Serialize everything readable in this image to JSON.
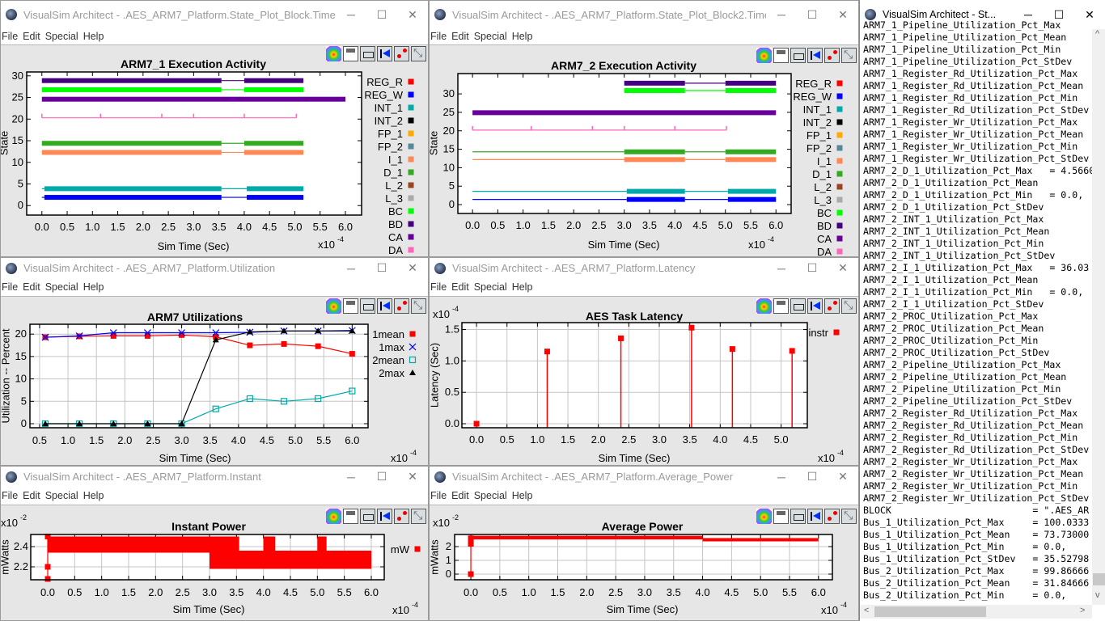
{
  "menu": [
    "File",
    "Edit",
    "Special",
    "Help"
  ],
  "window_controls": {
    "minimize": "─",
    "maximize": "☐",
    "close": "✕"
  },
  "windows": [
    {
      "title": "VisualSim Architect - .AES_ARM7_Platform.State_Plot_Block.Timed..."
    },
    {
      "title": "VisualSim Architect - .AES_ARM7_Platform.State_Plot_Block2.Time..."
    },
    {
      "title": "VisualSim Architect - .AES_ARM7_Platform.Utilization"
    },
    {
      "title": "VisualSim Architect - .AES_ARM7_Platform.Latency"
    },
    {
      "title": "VisualSim Architect - .AES_ARM7_Platform.Instant"
    },
    {
      "title": "VisualSim Architect - .AES_ARM7_Platform.Average_Power"
    }
  ],
  "toolbar_icons": [
    "color-palette",
    "save",
    "print",
    "reset-axes",
    "points",
    "fill"
  ],
  "chart_data": [
    {
      "type": "state",
      "title": "ARM7_1 Execution Activity",
      "xlabel": "Sim Time (Sec)",
      "ylabel": "State",
      "x_multiplier": {
        "base": "x10",
        "exp": "-4"
      },
      "xlim": [
        -0.3,
        6.32
      ],
      "ylim": [
        -2.2,
        30.9
      ],
      "grid": false,
      "xticks": [
        "0.0",
        "0.5",
        "1.0",
        "1.5",
        "2.0",
        "2.5",
        "3.0",
        "3.5",
        "4.0",
        "4.5",
        "5.0",
        "5.5",
        "6.0"
      ],
      "yticks": [
        "0",
        "5",
        "10",
        "15",
        "20",
        "25",
        "30"
      ],
      "legend": [
        {
          "name": "REG_R",
          "color": "#ff0000"
        },
        {
          "name": "REG_W",
          "color": "#0000ff"
        },
        {
          "name": "INT_1",
          "color": "#00aaaa"
        },
        {
          "name": "INT_2",
          "color": "#000000"
        },
        {
          "name": "FP_1",
          "color": "#ffaa00"
        },
        {
          "name": "FP_2",
          "color": "#558899"
        },
        {
          "name": "I_1",
          "color": "#ff8855"
        },
        {
          "name": "D_1",
          "color": "#33aa22"
        },
        {
          "name": "L_2",
          "color": "#994422"
        },
        {
          "name": "L_3",
          "color": "#aaaaaa"
        },
        {
          "name": "BC",
          "color": "#00ff00"
        },
        {
          "name": "BD",
          "color": "#44007f"
        },
        {
          "name": "CA",
          "color": "#660099"
        },
        {
          "name": "DA",
          "color": "#ff66bb"
        }
      ],
      "series": [
        {
          "name": "BD",
          "color": "#44007f",
          "level": 28.9,
          "segments": [
            [
              0,
              3.55,
              1
            ],
            [
              3.55,
              4.0,
              0
            ],
            [
              4.0,
              5.17,
              1
            ]
          ]
        },
        {
          "name": "BC",
          "color": "#00ff00",
          "level": 26.8,
          "segments": [
            [
              0,
              3.55,
              1
            ],
            [
              3.55,
              4.0,
              0
            ],
            [
              4.0,
              5.17,
              1
            ]
          ]
        },
        {
          "name": "CA",
          "color": "#660099",
          "level": 24.6,
          "segments": [
            [
              0,
              6.0,
              1
            ]
          ]
        },
        {
          "name": "DA",
          "color": "#ff66bb",
          "level": 20.3,
          "segments": [
            [
              0,
              5.03,
              0
            ]
          ],
          "ticks": [
            0,
            1.16,
            2.37,
            3.0,
            4.0,
            5.03
          ]
        },
        {
          "name": "D_1",
          "color": "#33aa22",
          "level": 14.4,
          "segments": [
            [
              0,
              3.55,
              1
            ],
            [
              3.55,
              4.0,
              0
            ],
            [
              4.0,
              5.17,
              1
            ]
          ]
        },
        {
          "name": "I_1",
          "color": "#ff8855",
          "level": 12.3,
          "segments": [
            [
              0,
              3.55,
              1
            ],
            [
              3.55,
              4.0,
              0
            ],
            [
              4.0,
              5.17,
              1
            ]
          ]
        },
        {
          "name": "INT_1",
          "color": "#00aaaa",
          "level": 3.9,
          "segments": [
            [
              0,
              0.05,
              0
            ],
            [
              0.05,
              3.55,
              1
            ],
            [
              3.55,
              4.05,
              0
            ],
            [
              4.05,
              5.17,
              1
            ]
          ]
        },
        {
          "name": "REG_W",
          "color": "#0000ff",
          "level": 1.9,
          "segments": [
            [
              0,
              0.05,
              0
            ],
            [
              0.05,
              3.55,
              1
            ],
            [
              3.55,
              4.05,
              0
            ],
            [
              4.05,
              5.17,
              1
            ]
          ]
        }
      ]
    },
    {
      "type": "state",
      "title": "ARM7_2 Execution Activity",
      "xlabel": "Sim Time (Sec)",
      "ylabel": "State",
      "x_multiplier": {
        "base": "x10",
        "exp": "-4"
      },
      "xlim": [
        -0.29,
        6.3
      ],
      "ylim": [
        -2.4,
        35.5
      ],
      "grid": false,
      "xticks": [
        "0.0",
        "0.5",
        "1.0",
        "1.5",
        "2.0",
        "2.5",
        "3.0",
        "3.5",
        "4.0",
        "4.5",
        "5.0",
        "5.5",
        "6.0"
      ],
      "yticks": [
        "0",
        "5",
        "10",
        "15",
        "20",
        "25",
        "30"
      ],
      "legend": [
        {
          "name": "REG_R",
          "color": "#ff0000"
        },
        {
          "name": "REG_W",
          "color": "#0000ff"
        },
        {
          "name": "INT_1",
          "color": "#00aaaa"
        },
        {
          "name": "INT_2",
          "color": "#000000"
        },
        {
          "name": "FP_1",
          "color": "#ffaa00"
        },
        {
          "name": "FP_2",
          "color": "#558899"
        },
        {
          "name": "I_1",
          "color": "#ff8855"
        },
        {
          "name": "D_1",
          "color": "#33aa22"
        },
        {
          "name": "L_2",
          "color": "#994422"
        },
        {
          "name": "L_3",
          "color": "#aaaaaa"
        },
        {
          "name": "BC",
          "color": "#00ff00"
        },
        {
          "name": "BD",
          "color": "#44007f"
        },
        {
          "name": "CA",
          "color": "#660099"
        },
        {
          "name": "DA",
          "color": "#ff66bb"
        }
      ],
      "series": [
        {
          "name": "BD",
          "color": "#44007f",
          "level": 32.9,
          "segments": [
            [
              3.0,
              4.2,
              1
            ],
            [
              4.2,
              5.0,
              0
            ],
            [
              5.0,
              6.0,
              1
            ]
          ]
        },
        {
          "name": "BC",
          "color": "#00ff00",
          "level": 30.9,
          "segments": [
            [
              3.0,
              4.2,
              1
            ],
            [
              4.2,
              5.0,
              0
            ],
            [
              5.0,
              6.0,
              1
            ]
          ]
        },
        {
          "name": "CA",
          "color": "#660099",
          "level": 24.9,
          "segments": [
            [
              0,
              6.0,
              1
            ]
          ]
        },
        {
          "name": "DA",
          "color": "#ff66bb",
          "level": 20.2,
          "segments": [
            [
              0,
              5.02,
              0
            ]
          ],
          "ticks": [
            0,
            1.16,
            2.37,
            3.0,
            4.0,
            5.02
          ]
        },
        {
          "name": "D_1",
          "color": "#33aa22",
          "level": 14.3,
          "segments": [
            [
              0,
              3.0,
              0
            ],
            [
              3.0,
              4.2,
              1
            ],
            [
              4.2,
              5.0,
              0
            ],
            [
              5.0,
              6.0,
              1
            ]
          ]
        },
        {
          "name": "I_1",
          "color": "#ff8855",
          "level": 12.2,
          "segments": [
            [
              0,
              3.0,
              0
            ],
            [
              3.0,
              4.2,
              1
            ],
            [
              4.2,
              5.0,
              0
            ],
            [
              5.0,
              6.0,
              1
            ]
          ]
        },
        {
          "name": "INT_1",
          "color": "#00aaaa",
          "level": 3.6,
          "segments": [
            [
              0,
              3.05,
              0
            ],
            [
              3.05,
              4.2,
              1
            ],
            [
              4.2,
              5.05,
              0
            ],
            [
              5.05,
              6.0,
              1
            ]
          ]
        },
        {
          "name": "REG_W",
          "color": "#0000ff",
          "level": 1.4,
          "segments": [
            [
              0,
              3.05,
              0
            ],
            [
              3.05,
              4.2,
              1
            ],
            [
              4.2,
              5.05,
              0
            ],
            [
              5.05,
              6.0,
              1
            ]
          ]
        }
      ]
    },
    {
      "type": "line",
      "title": "ARM7 Utilizations",
      "xlabel": "Sim Time (Sec)",
      "ylabel": "Utilization -- Percent",
      "x_multiplier": {
        "base": "x10",
        "exp": "-4"
      },
      "xlim": [
        0.33,
        6.28
      ],
      "ylim": [
        -0.9,
        22.2
      ],
      "grid": true,
      "xticks": [
        "0.5",
        "1.0",
        "1.5",
        "2.0",
        "2.5",
        "3.0",
        "3.5",
        "4.0",
        "4.5",
        "5.0",
        "5.5",
        "6.0"
      ],
      "yticks": [
        "0",
        "5",
        "10",
        "15",
        "20"
      ],
      "x": [
        0.6,
        1.2,
        1.8,
        2.4,
        3.0,
        3.6,
        4.2,
        4.8,
        5.4,
        6.0
      ],
      "series": [
        {
          "name": "1mean",
          "color": "#ff0000",
          "marker": "square",
          "values": [
            19.3,
            19.5,
            19.6,
            19.6,
            19.8,
            19.4,
            17.5,
            17.8,
            17.3,
            15.6
          ]
        },
        {
          "name": "1max",
          "color": "#0000ff",
          "marker": "x",
          "values": [
            19.3,
            19.6,
            20.3,
            20.3,
            20.3,
            20.3,
            20.4,
            20.7,
            20.7,
            20.8
          ]
        },
        {
          "name": "2mean",
          "color": "#00aaaa",
          "marker": "hollow-square",
          "values": [
            0,
            0,
            0,
            0,
            0,
            3.3,
            5.6,
            5.0,
            5.6,
            7.3
          ]
        },
        {
          "name": "2max",
          "color": "#000000",
          "marker": "triangle",
          "values": [
            0,
            0,
            0,
            0,
            0,
            18.7,
            20.5,
            20.7,
            20.7,
            20.7
          ]
        }
      ]
    },
    {
      "type": "stem",
      "title": "AES Task Latency",
      "xlabel": "Sim Time (Sec)",
      "ylabel": "Latency (Sec)",
      "x_multiplier": {
        "base": "x10",
        "exp": "-4"
      },
      "y_multiplier": {
        "base": "x10",
        "exp": "-4"
      },
      "xlim": [
        -0.24,
        5.43
      ],
      "ylim": [
        -0.064,
        1.61
      ],
      "grid": true,
      "xticks": [
        "0.0",
        "0.5",
        "1.0",
        "1.5",
        "2.0",
        "2.5",
        "3.0",
        "3.5",
        "4.0",
        "4.5",
        "5.0"
      ],
      "yticks": [
        "0.0",
        "0.5",
        "1.0",
        "1.5"
      ],
      "series": [
        {
          "name": "instr",
          "color": "#ff0000",
          "marker": "square",
          "points": [
            [
              0.0,
              0.0
            ],
            [
              1.16,
              1.15
            ],
            [
              2.37,
              1.36
            ],
            [
              3.53,
              1.53
            ],
            [
              4.2,
              1.19
            ],
            [
              5.18,
              1.16
            ]
          ]
        }
      ]
    },
    {
      "type": "area",
      "title": "Instant Power",
      "xlabel": "Sim Time (Sec)",
      "ylabel": "mWatts",
      "x_multiplier": {
        "base": "x10",
        "exp": "-4"
      },
      "y_multiplier": {
        "base": "x10",
        "exp": "-2"
      },
      "xlim": [
        -0.315,
        6.24
      ],
      "ylim": [
        2.072,
        2.52
      ],
      "grid": true,
      "xticks": [
        "0.0",
        "0.5",
        "1.0",
        "1.5",
        "2.0",
        "2.5",
        "3.0",
        "3.5",
        "4.0",
        "4.5",
        "5.0",
        "5.5",
        "6.0"
      ],
      "yticks": [
        "2.2",
        "2.4"
      ],
      "series": [
        {
          "name": "mW",
          "color": "#ff0000",
          "bands": [
            [
              0.0,
              3.55,
              2.34,
              2.5
            ],
            [
              3.0,
              6.0,
              2.18,
              2.36
            ],
            [
              4.0,
              4.22,
              2.34,
              2.5
            ],
            [
              5.0,
              5.17,
              2.34,
              2.5
            ]
          ],
          "points": [
            [
              0.0,
              2.5
            ],
            [
              0.0,
              2.2
            ],
            [
              0.0,
              2.08
            ]
          ]
        }
      ]
    },
    {
      "type": "area",
      "title": "Average Power",
      "xlabel": "Sim Time (Sec)",
      "ylabel": "mWatts",
      "x_multiplier": {
        "base": "x10",
        "exp": "-4"
      },
      "y_multiplier": {
        "base": "x10",
        "exp": "-2"
      },
      "xlim": [
        -0.28,
        6.24
      ],
      "ylim": [
        -0.41,
        2.88
      ],
      "grid": true,
      "xticks": [
        "0.0",
        "0.5",
        "1.0",
        "1.5",
        "2.0",
        "2.5",
        "3.0",
        "3.5",
        "4.0",
        "4.5",
        "5.0",
        "5.5",
        "6.0"
      ],
      "yticks": [
        "0",
        "1",
        "2"
      ],
      "series": [
        {
          "color": "#ff0000",
          "bands": [
            [
              0.03,
              4.0,
              2.52,
              2.78
            ],
            [
              4.0,
              6.0,
              2.38,
              2.62
            ]
          ],
          "points": [
            [
              0.0,
              0.0
            ],
            [
              0.0,
              2.2
            ],
            [
              0.0,
              2.6
            ]
          ]
        }
      ]
    }
  ],
  "text_window": {
    "title": "VisualSim Architect - St...",
    "lines": [
      "ARM7_1_Pipeline_Utilization_Pct_Max",
      "ARM7_1_Pipeline_Utilization_Pct_Mean",
      "ARM7_1_Pipeline_Utilization_Pct_Min",
      "ARM7_1_Pipeline_Utilization_Pct_StDev",
      "ARM7_1_Register_Rd_Utilization_Pct_Max",
      "ARM7_1_Register_Rd_Utilization_Pct_Mean",
      "ARM7_1_Register_Rd_Utilization_Pct_Min",
      "ARM7_1_Register_Rd_Utilization_Pct_StDev",
      "ARM7_1_Register_Wr_Utilization_Pct_Max",
      "ARM7_1_Register_Wr_Utilization_Pct_Mean",
      "ARM7_1_Register_Wr_Utilization_Pct_Min",
      "ARM7_1_Register_Wr_Utilization_Pct_StDev",
      "ARM7_2_D_1_Utilization_Pct_Max   = 4.5660",
      "ARM7_2_D_1_Utilization_Pct_Mean",
      "ARM7_2_D_1_Utilization_Pct_Min   = 0.0,",
      "ARM7_2_D_1_Utilization_Pct_StDev",
      "ARM7_2_INT_1_Utilization_Pct_Max",
      "ARM7_2_INT_1_Utilization_Pct_Mean",
      "ARM7_2_INT_1_Utilization_Pct_Min",
      "ARM7_2_INT_1_Utilization_Pct_StDev",
      "ARM7_2_I_1_Utilization_Pct_Max   = 36.03",
      "ARM7_2_I_1_Utilization_Pct_Mean",
      "ARM7_2_I_1_Utilization_Pct_Min   = 0.0,",
      "ARM7_2_I_1_Utilization_Pct_StDev",
      "ARM7_2_PROC_Utilization_Pct_Max",
      "ARM7_2_PROC_Utilization_Pct_Mean",
      "ARM7_2_PROC_Utilization_Pct_Min",
      "ARM7_2_PROC_Utilization_Pct_StDev",
      "ARM7_2_Pipeline_Utilization_Pct_Max",
      "ARM7_2_Pipeline_Utilization_Pct_Mean",
      "ARM7_2_Pipeline_Utilization_Pct_Min",
      "ARM7_2_Pipeline_Utilization_Pct_StDev",
      "ARM7_2_Register_Rd_Utilization_Pct_Max",
      "ARM7_2_Register_Rd_Utilization_Pct_Mean",
      "ARM7_2_Register_Rd_Utilization_Pct_Min",
      "ARM7_2_Register_Rd_Utilization_Pct_StDev",
      "ARM7_2_Register_Wr_Utilization_Pct_Max",
      "ARM7_2_Register_Wr_Utilization_Pct_Mean",
      "ARM7_2_Register_Wr_Utilization_Pct_Min",
      "ARM7_2_Register_Wr_Utilization_Pct_StDev",
      "BLOCK                         = \".AES_AR",
      "Bus_1_Utilization_Pct_Max     = 100.0333",
      "Bus_1_Utilization_Pct_Mean    = 73.73000",
      "Bus_1_Utilization_Pct_Min     = 0.0,",
      "Bus_1_Utilization_Pct_StDev   = 35.52798",
      "Bus_2_Utilization_Pct_Max     = 99.86666",
      "Bus_2_Utilization_Pct_Mean    = 31.84666",
      "Bus_2_Utilization_Pct_Min     = 0.0,"
    ],
    "scroll_left": "<",
    "scroll_right": ">",
    "scroll_up": "^",
    "scroll_down": "v"
  }
}
